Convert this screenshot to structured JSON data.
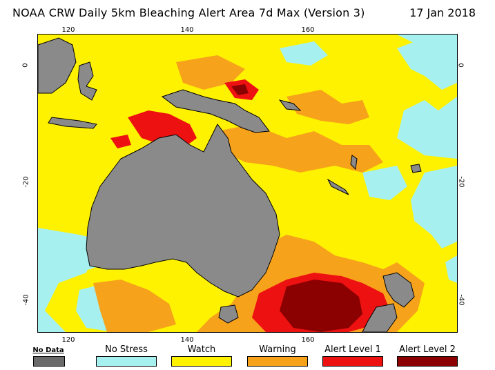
{
  "title": "NOAA CRW Daily 5km Bleaching Alert Area 7d Max (Version 3)",
  "date": "17 Jan 2018",
  "axes": {
    "lon_ticks_top": [
      "120",
      "140",
      "160"
    ],
    "lon_ticks_bottom": [
      "120",
      "140",
      "160"
    ],
    "lat_ticks_left": [
      "0",
      "-20",
      "-40"
    ],
    "lat_ticks_right": [
      "0",
      "-20",
      "-40"
    ]
  },
  "legend": {
    "items": [
      {
        "label": "No Data",
        "color": "#6a6a6a"
      },
      {
        "label": "No Stress",
        "color": "#a6f0f0"
      },
      {
        "label": "Watch",
        "color": "#fff200"
      },
      {
        "label": "Warning",
        "color": "#f7a21b"
      },
      {
        "label": "Alert Level 1",
        "color": "#ee1111"
      },
      {
        "label": "Alert Level 2",
        "color": "#8b0000"
      }
    ]
  },
  "colors": {
    "land": "#8a8a8a",
    "no_stress": "#a6f0f0",
    "watch": "#fff200",
    "warning": "#f7a21b",
    "alert1": "#ee1111",
    "alert2": "#8b0000"
  }
}
